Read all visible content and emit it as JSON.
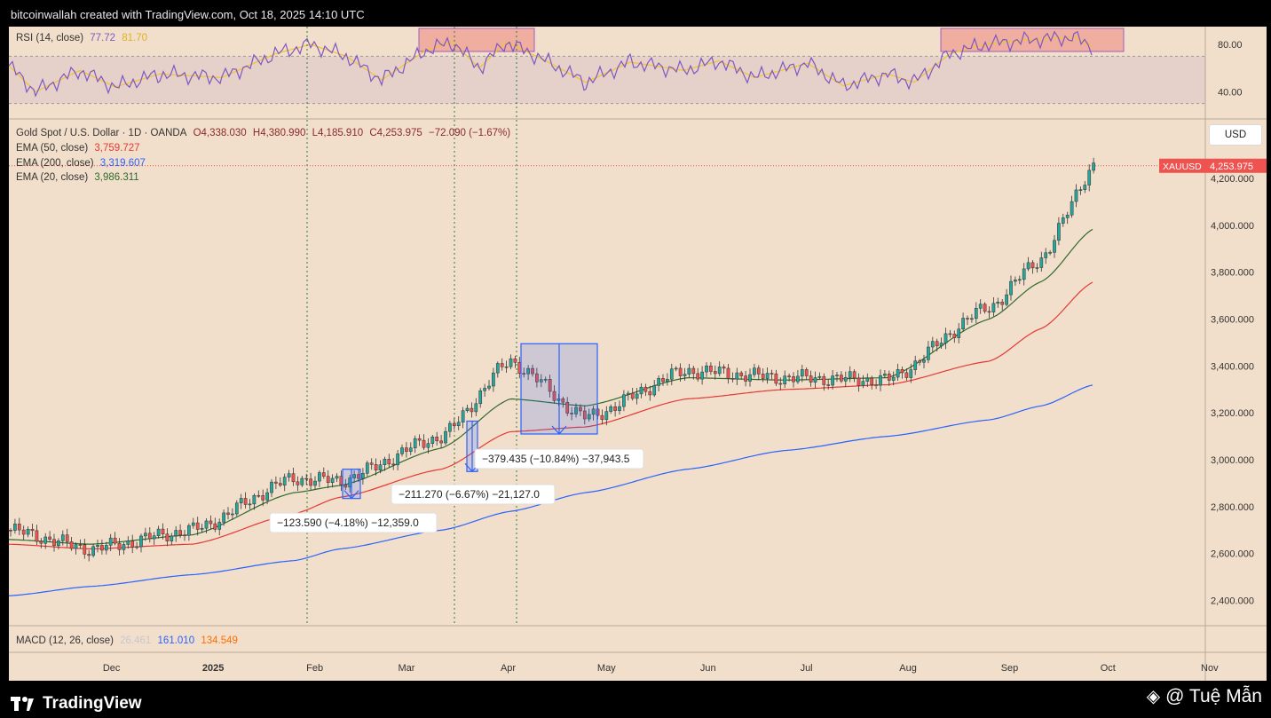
{
  "attribution": "bitcoinwallah created with TradingView.com, Oct 18, 2025 14:10 UTC",
  "footer": {
    "brand": "TradingView",
    "watermark": "@ Tuệ Mẫn"
  },
  "rsi_legend": {
    "label": "RSI (14, close)",
    "value1": "77.72",
    "value2": "81.70"
  },
  "price_legend": {
    "symbol": "Gold Spot / U.S. Dollar · 1D · OANDA",
    "o": "O4,338.030",
    "h": "H4,380.990",
    "l": "L4,185.910",
    "c": "C4,253.975",
    "change": "−72.090 (−1.67%)"
  },
  "ema_legend": [
    {
      "label": "EMA (50, close)",
      "value": "3,759.727"
    },
    {
      "label": "EMA (200, close)",
      "value": "3,319.607"
    },
    {
      "label": "EMA (20, close)",
      "value": "3,986.311"
    }
  ],
  "macd_legend": {
    "label": "MACD (12, 26, close)",
    "v1": "26.461",
    "v2": "161.010",
    "v3": "134.549"
  },
  "currency": "USD",
  "price_tag": {
    "symbol": "XAUUSD",
    "value": "4,253.975"
  },
  "measurements": [
    "−123.590 (−4.18%) −12,359.0",
    "−211.270 (−6.67%) −21,127.0",
    "−379.435 (−10.84%) −37,943.5"
  ],
  "colors": {
    "background": "#f2dfcb",
    "up": "#26a69a",
    "down": "#ef5350",
    "ema20": "#2e6b2e",
    "ema50": "#e53935",
    "ema200": "#2962ff",
    "rsi": "#7e57c2",
    "rsi_ma": "#f0c42b",
    "measure": "#2962ff"
  },
  "chart_data": {
    "type": "line",
    "title": "Gold Spot / U.S. Dollar · 1D · OANDA",
    "x_axis_labels": [
      "Dec",
      "2025",
      "Feb",
      "Mar",
      "Apr",
      "May",
      "Jun",
      "Jul",
      "Aug",
      "Sep",
      "Oct",
      "Nov"
    ],
    "y_axis_labels": [
      "4,200.000",
      "4,000.000",
      "3,800.000",
      "3,600.000",
      "3,400.000",
      "3,200.000",
      "3,000.000",
      "2,800.000",
      "2,600.000",
      "2,400.000"
    ],
    "ylim": [
      2300,
      4450
    ],
    "rsi_axis_labels": [
      "80.00",
      "40.00"
    ],
    "x": [
      "2024-11-20",
      "2024-12-15",
      "2025-01-15",
      "2025-02-15",
      "2025-03-01",
      "2025-04-01",
      "2025-04-22",
      "2025-05-15",
      "2025-06-15",
      "2025-07-15",
      "2025-08-15",
      "2025-09-15",
      "2025-10-01",
      "2025-10-17"
    ],
    "series": [
      {
        "name": "Gold Spot / U.S. Dollar",
        "values": [
          2700,
          2620,
          2700,
          2920,
          2910,
          3100,
          3420,
          3180,
          3380,
          3350,
          3340,
          3650,
          3860,
          4254
        ]
      },
      {
        "name": "EMA (20, close)",
        "values": [
          2660,
          2640,
          2680,
          2860,
          2890,
          3050,
          3260,
          3230,
          3350,
          3340,
          3350,
          3600,
          3760,
          3986
        ]
      },
      {
        "name": "EMA (50, close)",
        "values": [
          2640,
          2620,
          2640,
          2770,
          2840,
          2960,
          3120,
          3140,
          3260,
          3300,
          3320,
          3420,
          3560,
          3760
        ]
      },
      {
        "name": "EMA (200, close)",
        "values": [
          2420,
          2460,
          2510,
          2570,
          2620,
          2700,
          2780,
          2860,
          2960,
          3040,
          3100,
          3170,
          3230,
          3320
        ]
      }
    ],
    "grid": false
  }
}
